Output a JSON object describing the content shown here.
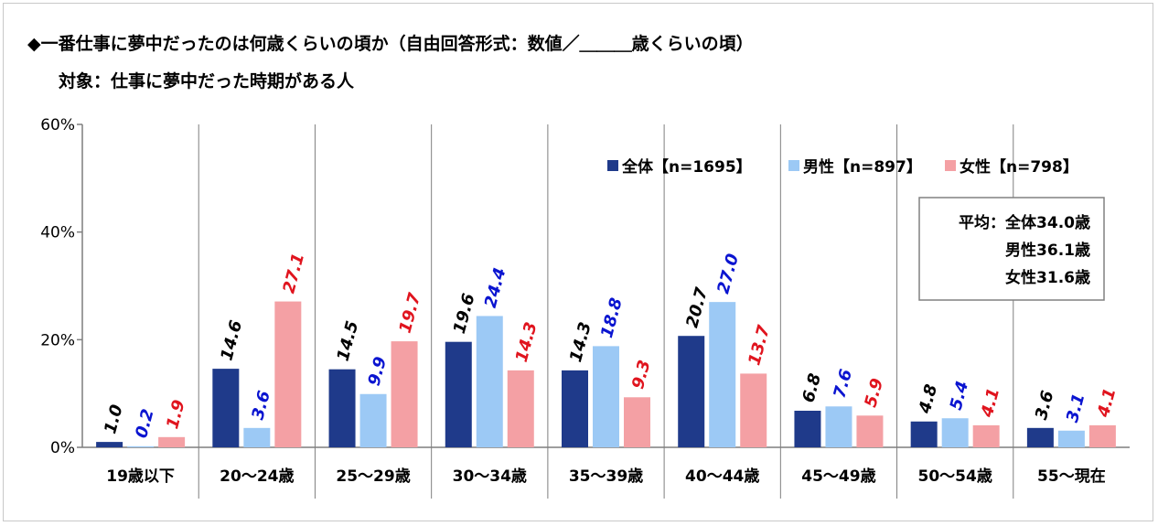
{
  "title": "◆一番仕事に夢中だったのは何歳くらいの頃か（自由回答形式：数値／＿＿＿歳くらいの頃）",
  "subtitle": "対象：仕事に夢中だった時期がある人",
  "average_box": {
    "lines": [
      "平均：全体34.0歳",
      "男性36.1歳",
      "女性31.6歳"
    ]
  },
  "colors": {
    "total": "#1f3a8a",
    "male": "#9cc9f5",
    "female": "#f4a0a4",
    "label_total": "#000000",
    "label_male": "#0a14d0",
    "label_female": "#e0141e"
  },
  "chart_data": {
    "type": "bar",
    "categories": [
      "19歳以下",
      "20～24歳",
      "25～29歳",
      "30～34歳",
      "35～39歳",
      "40～44歳",
      "45～49歳",
      "50～54歳",
      "55～現在"
    ],
    "series": [
      {
        "name": "全体【n=1695】",
        "values": [
          1.0,
          14.6,
          14.5,
          19.6,
          14.3,
          20.7,
          6.8,
          4.8,
          3.6
        ]
      },
      {
        "name": "男性【n=897】",
        "values": [
          0.2,
          3.6,
          9.9,
          24.4,
          18.8,
          27.0,
          7.6,
          5.4,
          3.1
        ]
      },
      {
        "name": "女性【n=798】",
        "values": [
          1.9,
          27.1,
          19.7,
          14.3,
          9.3,
          13.7,
          5.9,
          4.1,
          4.1
        ]
      }
    ],
    "yticks": [
      "0%",
      "20%",
      "40%",
      "60%"
    ],
    "ylim": [
      0,
      60
    ],
    "legend": "top-right",
    "grid": false
  }
}
